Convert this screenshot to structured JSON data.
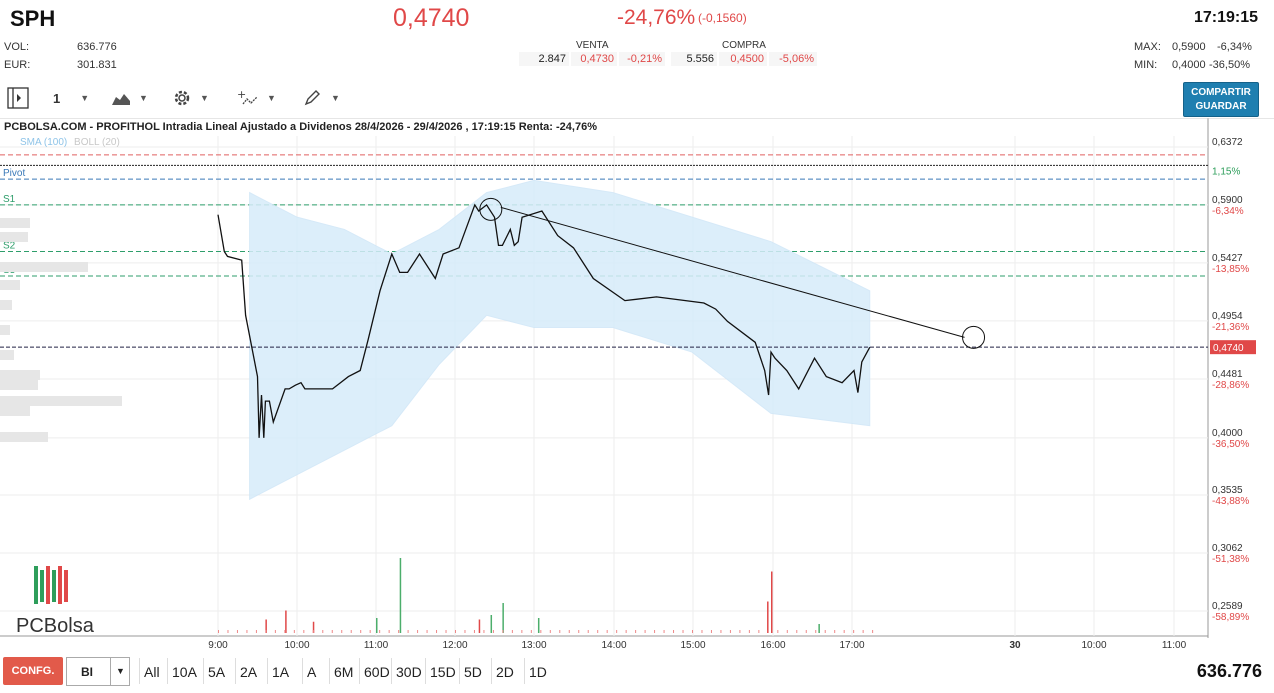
{
  "header": {
    "ticker": "SPH",
    "last_price": "0,4740",
    "change_pct": "-24,76%",
    "change_abs": "(-0,1560)",
    "time": "17:19:15",
    "vol_label": "VOL:",
    "vol_value": "636.776",
    "eur_label": "EUR:",
    "eur_value": "301.831",
    "max_label": "MAX:",
    "max_value": "0,5900",
    "max_pct": "-6,34%",
    "min_label": "MIN:",
    "min_value": "0,4000",
    "min_pct": "-36,50%"
  },
  "orderbook": {
    "sell_label": "VENTA",
    "buy_label": "COMPRA",
    "sell_qty": "2.847",
    "sell_price": "0,4730",
    "sell_pct": "-0,21%",
    "buy_qty": "5.556",
    "buy_price": "0,4500",
    "buy_pct": "-5,06%"
  },
  "toolbar": {
    "interval": "1",
    "share_line1": "COMPARTIR",
    "share_line2": "GUARDAR",
    "color_accent": "#1f7fb0"
  },
  "chart_data": {
    "type": "line",
    "title": "PCBOLSA.COM - PROFITHOL Intradia Lineal Ajustado a Dividenos 28/4/2026 - 29/4/2026 , 17:19:15 Renta: -24,76%",
    "legend": [
      "SMA (100)",
      "BOLL (20)"
    ],
    "ylim": [
      0.2589,
      0.6372
    ],
    "y_ticks": [
      {
        "value": "0,6372",
        "pct": ""
      },
      {
        "value": "",
        "pct": "1,15%"
      },
      {
        "value": "0,5900",
        "pct": "-6,34%"
      },
      {
        "value": "0,5427",
        "pct": "-13,85%"
      },
      {
        "value": "0,4954",
        "pct": "-21,36%"
      },
      {
        "value": "0,4481",
        "pct": "-28,86%"
      },
      {
        "value": "0,4000",
        "pct": "-36,50%"
      },
      {
        "value": "0,3535",
        "pct": "-43,88%"
      },
      {
        "value": "0,3062",
        "pct": "-51,38%"
      },
      {
        "value": "0,2589",
        "pct": "-58,89%"
      }
    ],
    "y_tick_values": [
      0.6372,
      0.6222,
      0.59,
      0.5427,
      0.4954,
      0.4481,
      0.4,
      0.3535,
      0.3062,
      0.2589
    ],
    "current_price": "0,4740",
    "current_value": 0.474,
    "x_ticks": [
      "9:00",
      "10:00",
      "11:00",
      "12:00",
      "13:00",
      "14:00",
      "15:00",
      "16:00",
      "17:00",
      "30",
      "10:00",
      "11:00"
    ],
    "levels": [
      {
        "name": "Pivot",
        "value": 0.611
      },
      {
        "name": "S1",
        "value": 0.59
      },
      {
        "name": "S2",
        "value": 0.552
      },
      {
        "name": "S3",
        "value": 0.532
      }
    ],
    "prev_close": 0.63,
    "series": [
      {
        "name": "PROFITHOL",
        "x": [
          9.0,
          9.08,
          9.12,
          9.3,
          9.35,
          9.5,
          9.52,
          9.55,
          9.58,
          9.6,
          9.65,
          9.7,
          9.85,
          9.9,
          9.98,
          10.05,
          10.1,
          10.25,
          10.45,
          10.65,
          10.8,
          10.9,
          11.05,
          11.2,
          11.3,
          11.4,
          11.55,
          11.75,
          11.85,
          12.05,
          12.25,
          12.3,
          12.4,
          12.5,
          12.55,
          12.6,
          12.7,
          12.75,
          12.8,
          12.85,
          13.1,
          13.3,
          13.5,
          13.75,
          14.15,
          14.55,
          15.15,
          15.3,
          15.45,
          15.8,
          15.92,
          15.97,
          16.0,
          16.05,
          16.2,
          16.35,
          16.55,
          16.7,
          16.9,
          17.05,
          17.1,
          17.15,
          17.25
        ],
        "y": [
          0.582,
          0.552,
          0.548,
          0.545,
          0.5,
          0.45,
          0.4,
          0.435,
          0.4,
          0.43,
          0.43,
          0.413,
          0.44,
          0.44,
          0.443,
          0.445,
          0.44,
          0.44,
          0.44,
          0.45,
          0.455,
          0.48,
          0.52,
          0.55,
          0.535,
          0.535,
          0.55,
          0.53,
          0.55,
          0.555,
          0.59,
          0.585,
          0.59,
          0.58,
          0.557,
          0.557,
          0.57,
          0.557,
          0.56,
          0.58,
          0.585,
          0.565,
          0.555,
          0.53,
          0.512,
          0.515,
          0.51,
          0.505,
          0.495,
          0.478,
          0.455,
          0.435,
          0.47,
          0.465,
          0.455,
          0.44,
          0.465,
          0.45,
          0.445,
          0.455,
          0.437,
          0.462,
          0.474
        ]
      }
    ],
    "trendline": {
      "from": [
        12.58,
        0.588
      ],
      "to": [
        18.45,
        0.482
      ]
    },
    "bollinger_upper": [
      0.6,
      0.58,
      0.57,
      0.55,
      0.57,
      0.6,
      0.61,
      0.6,
      0.58,
      0.56,
      0.52
    ],
    "bollinger_lower": [
      0.35,
      0.37,
      0.39,
      0.41,
      0.46,
      0.5,
      0.49,
      0.49,
      0.47,
      0.42,
      0.41
    ],
    "bollinger_x": [
      9.4,
      10.0,
      10.6,
      11.2,
      11.8,
      12.4,
      13.0,
      14.0,
      15.0,
      16.0,
      17.25
    ],
    "volume_bars": [
      {
        "x": 9.6,
        "v": 0.18,
        "color": "#e04848"
      },
      {
        "x": 9.85,
        "v": 0.3,
        "color": "#e04848"
      },
      {
        "x": 10.2,
        "v": 0.15,
        "color": "#e04848"
      },
      {
        "x": 11.0,
        "v": 0.2,
        "color": "#4cae6b"
      },
      {
        "x": 11.3,
        "v": 1.0,
        "color": "#4cae6b"
      },
      {
        "x": 12.3,
        "v": 0.18,
        "color": "#e04848"
      },
      {
        "x": 12.45,
        "v": 0.24,
        "color": "#4cae6b"
      },
      {
        "x": 12.6,
        "v": 0.4,
        "color": "#4cae6b"
      },
      {
        "x": 13.05,
        "v": 0.2,
        "color": "#4cae6b"
      },
      {
        "x": 15.95,
        "v": 0.42,
        "color": "#e04848"
      },
      {
        "x": 16.0,
        "v": 0.82,
        "color": "#e04848"
      },
      {
        "x": 16.6,
        "v": 0.12,
        "color": "#4cae6b"
      }
    ]
  },
  "logo": {
    "text": "PCBolsa"
  },
  "bottom": {
    "config_label": "CONFG.",
    "mode_value": "BI",
    "ranges": [
      "All",
      "10A",
      "5A",
      "2A",
      "1A",
      "A",
      "6M",
      "60D",
      "30D",
      "15D",
      "5D",
      "2D",
      "1D"
    ],
    "volume_total": "636.776"
  }
}
